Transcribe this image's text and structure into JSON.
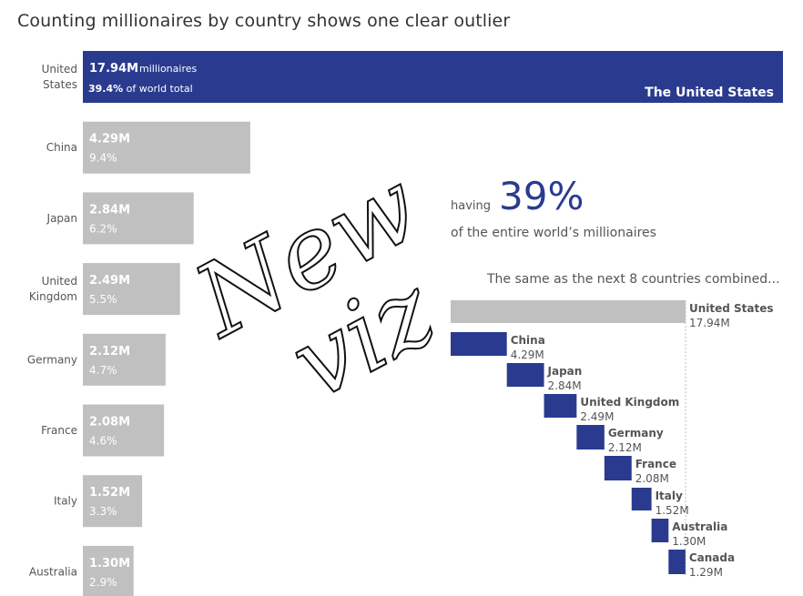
{
  "title": "Counting millionaires by country shows one clear outlier",
  "colors": {
    "highlight": "#2a3b8f",
    "other": "#c0c0c0",
    "text": "#555555"
  },
  "chart_data": [
    {
      "type": "bar",
      "orientation": "horizontal",
      "categories": [
        "United States",
        "China",
        "Japan",
        "United Kingdom",
        "Germany",
        "France",
        "Italy",
        "Australia"
      ],
      "category_labels": [
        [
          "United",
          "States"
        ],
        [
          "China"
        ],
        [
          "Japan"
        ],
        [
          "United",
          "Kingdom"
        ],
        [
          "Germany"
        ],
        [
          "France"
        ],
        [
          "Italy"
        ],
        [
          "Australia"
        ]
      ],
      "values": [
        17.94,
        4.29,
        2.84,
        2.49,
        2.12,
        2.08,
        1.52,
        1.3
      ],
      "value_labels": [
        "17.94M",
        "4.29M",
        "2.84M",
        "2.49M",
        "2.12M",
        "2.08M",
        "1.52M",
        "1.30M"
      ],
      "share_labels": [
        "39.4%",
        "9.4%",
        "6.2%",
        "5.5%",
        "4.7%",
        "4.6%",
        "3.3%",
        "2.9%"
      ],
      "units": "millionaires",
      "top_bar_suffix": "of world total",
      "top_bar_name": "The United States",
      "highlight": "United States"
    },
    {
      "type": "bar",
      "subtype": "waterfall",
      "caption": "The same as the next 8 countries combined...",
      "categories": [
        "United States",
        "China",
        "Japan",
        "United Kingdom",
        "Germany",
        "France",
        "Italy",
        "Australia",
        "Canada"
      ],
      "values": [
        17.94,
        4.29,
        2.84,
        2.49,
        2.12,
        2.08,
        1.52,
        1.3,
        1.29
      ],
      "value_labels": [
        "17.94M",
        "4.29M",
        "2.84M",
        "2.49M",
        "2.12M",
        "2.08M",
        "1.52M",
        "1.30M",
        "1.29M"
      ]
    }
  ],
  "annotation": {
    "prefix": "having",
    "big_value": "39%",
    "suffix": "of the entire world’s millionaires"
  },
  "stamp": {
    "line1": "New",
    "line2": "viz"
  }
}
